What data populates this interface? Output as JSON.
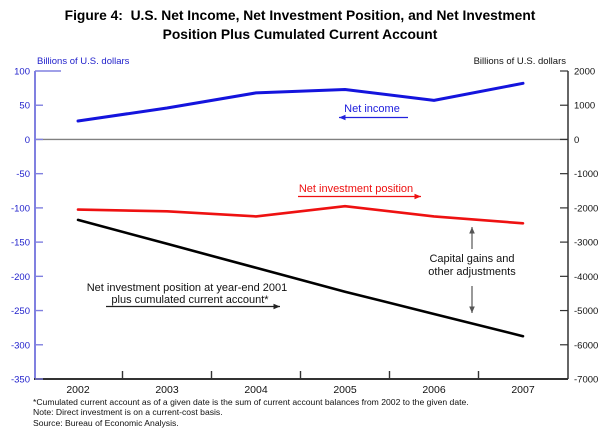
{
  "title": {
    "line1": "Figure 4:  U.S. Net Income, Net Investment Position, and Net Investment",
    "line2": "Position Plus Cumulated Current Account"
  },
  "axes": {
    "left_unit_label": "Billions of U.S. dollars",
    "right_unit_label": "Billions of U.S. dollars",
    "left_ticks": [
      100,
      50,
      0,
      -50,
      -100,
      -150,
      -200,
      -250,
      -300,
      -350
    ],
    "right_ticks": [
      2000,
      1000,
      0,
      -1000,
      -2000,
      -3000,
      -4000,
      -5000,
      -6000,
      -7000
    ],
    "years": [
      "2002",
      "2003",
      "2004",
      "2005",
      "2006",
      "2007"
    ]
  },
  "chart_data": {
    "type": "line",
    "title": "U.S. Net Income, Net Investment Position, and Net Investment Position Plus Cumulated Current Account",
    "x": [
      2002,
      2003,
      2004,
      2005,
      2006,
      2007
    ],
    "left_axis": {
      "label": "Billions of U.S. dollars",
      "range": [
        -350,
        100
      ],
      "tick_step": 50
    },
    "right_axis": {
      "label": "Billions of U.S. dollars",
      "range": [
        -7000,
        2000
      ],
      "tick_step": 1000
    },
    "grid": false,
    "legend": "inline-annotations",
    "series": [
      {
        "name": "Net income",
        "axis": "left",
        "color": "#1414dd",
        "width": 3,
        "values": [
          27,
          46,
          68,
          73,
          57,
          82
        ]
      },
      {
        "name": "Net investment position",
        "axis": "right",
        "color": "#ee1111",
        "width": 2.6,
        "values": [
          -2050,
          -2100,
          -2250,
          -1950,
          -2250,
          -2450
        ]
      },
      {
        "name": "Net investment position at year-end 2001 plus cumulated current account",
        "axis": "right",
        "color": "#000000",
        "width": 2.6,
        "values": [
          -2350,
          -3050,
          -3750,
          -4450,
          -5100,
          -5750
        ]
      }
    ]
  },
  "annotations": {
    "net_income": "Net income",
    "net_investment_position": "Net investment position",
    "niip_cca_line1": "Net investment position at year-end 2001",
    "niip_cca_line2": "plus cumulated current account*",
    "capital_gains_line1": "Capital gains and",
    "capital_gains_line2": "other adjustments"
  },
  "footnotes": [
    "*Cumulated current account as of a given date is the sum of current account balances from 2002 to the given date.",
    "Note: Direct investment is on a current-cost basis.",
    "Source: Bureau of Economic Analysis."
  ],
  "colors": {
    "net_income_line": "#1414dd",
    "net_investment_line": "#ee1111",
    "cumulated_line": "#000000",
    "left_axis": "#8080e0",
    "left_labels": "#2222cc",
    "zero_line": "#808080",
    "frame": "#333333",
    "capital_gains_arrows": "#555555"
  }
}
